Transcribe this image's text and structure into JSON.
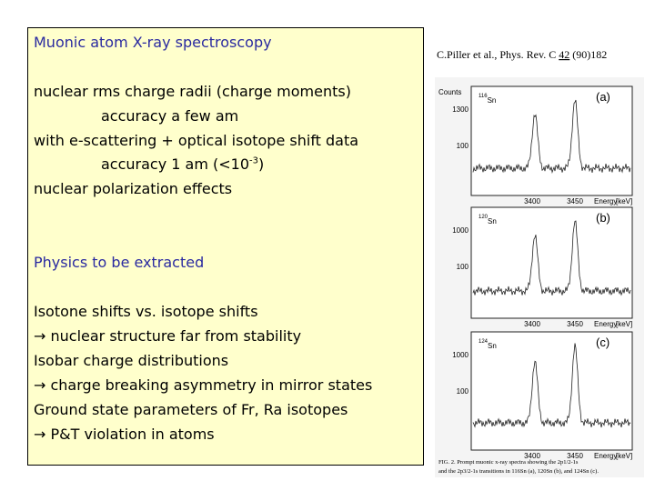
{
  "text_box": {
    "title": "Muonic atom X-ray spectroscopy",
    "lines": [
      "nuclear rms charge radii (charge moments)",
      "accuracy a few am",
      "with e-scattering + optical isotope shift data",
      {
        "before": "accuracy 1 am (<10",
        "sup": "-3",
        "after": ")"
      },
      "nuclear polarization effects"
    ],
    "section_title": "Physics to be extracted",
    "items": [
      "Isotone shifts vs. isotope shifts",
      "→ nuclear structure far from stability",
      "Isobar charge distributions",
      "→ charge breaking asymmetry in mirror states",
      "Ground state parameters of Fr, Ra isotopes",
      "→ P&T violation in atoms"
    ]
  },
  "figure": {
    "citation": {
      "before": "C.Piller et al., Phys. Rev. C ",
      "volume": "42",
      "after": " (90)182"
    },
    "y_axis_label": "Counts",
    "panels": [
      {
        "mass": "116",
        "element": "Sn",
        "tag": "(a)",
        "y_labels": [
          "1300",
          "100"
        ],
        "x_labels": [
          "3400",
          "3450"
        ],
        "x_axis_label": "Energy",
        "x_unit": "[keV]"
      },
      {
        "mass": "120",
        "element": "Sn",
        "tag": "(b)",
        "y_labels": [
          "1000",
          "100"
        ],
        "x_labels": [
          "3400",
          "3450"
        ],
        "x_axis_label": "Energy",
        "x_unit": "[keV]"
      },
      {
        "mass": "124",
        "element": "Sn",
        "tag": "(c)",
        "y_labels": [
          "1000",
          "100"
        ],
        "x_labels": [
          "3400",
          "3450"
        ],
        "x_axis_label": "Energy",
        "x_unit": "[keV]"
      }
    ],
    "caption": [
      "FIG. 2. Prompt muonic x-ray spectra showing the 2p1/2-1s",
      "and the 2p3/2-1s transitions in 116Sn (a), 120Sn (b), and 124Sn (c)."
    ]
  }
}
